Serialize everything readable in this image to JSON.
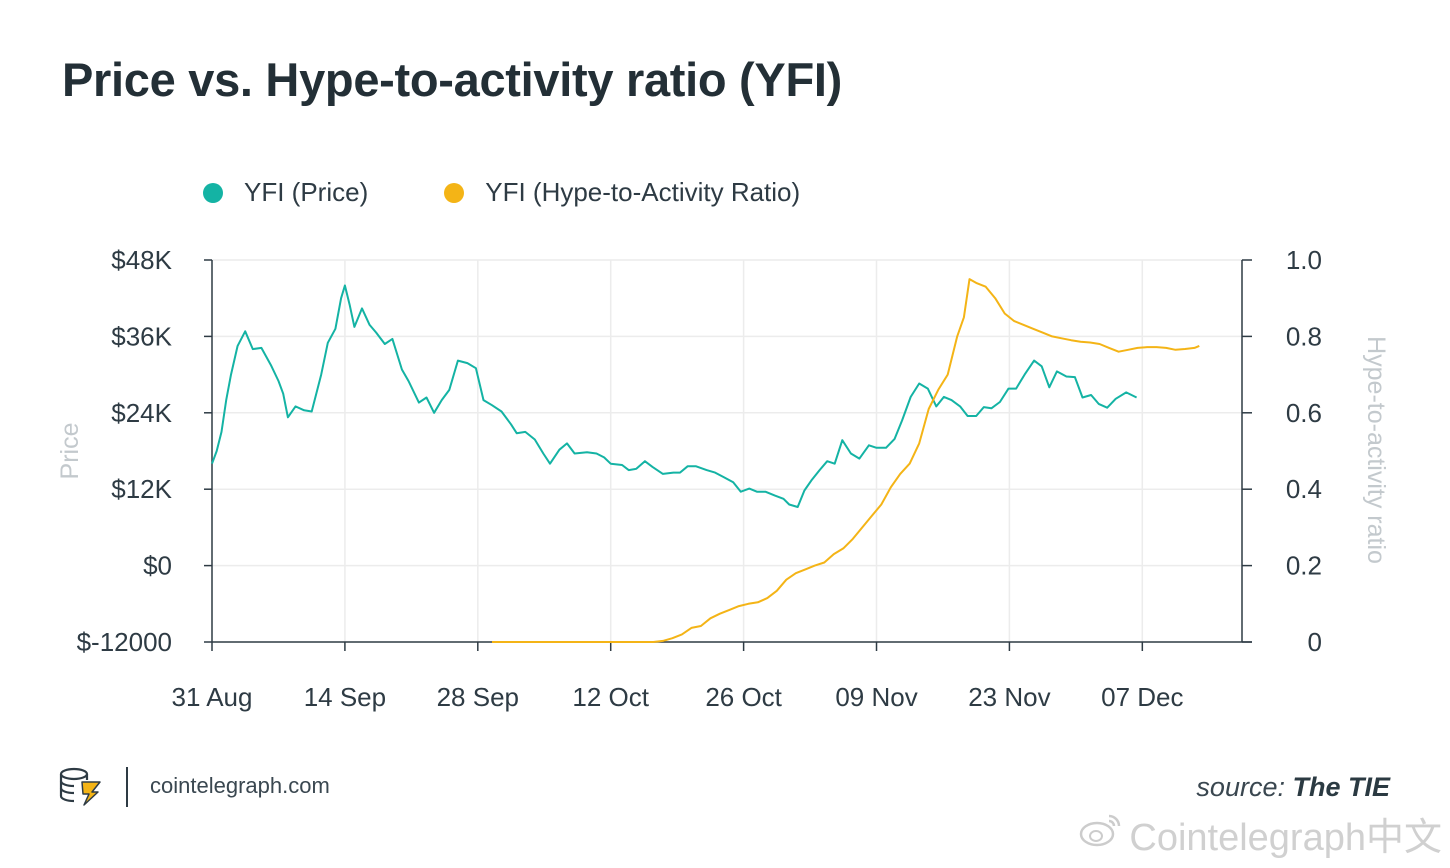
{
  "title": "Price vs. Hype-to-activity ratio (YFI)",
  "legend": [
    {
      "label": "YFI (Price)",
      "color": "#14b3a4"
    },
    {
      "label": "YFI (Hype-to-Activity Ratio)",
      "color": "#f4b416"
    }
  ],
  "footer": {
    "site": "cointelegraph.com",
    "source_label": "source:",
    "source_name": "The TIE",
    "watermark": "Cointelegraph中文"
  },
  "chart_data": {
    "type": "line",
    "title": "Price vs. Hype-to-activity ratio (YFI)",
    "xlabel": "",
    "ylabel": "Price",
    "y2label": "Hype-to-activity ratio",
    "x_range_days": [
      0,
      108.5
    ],
    "x_ticks": [
      {
        "label": "31 Aug",
        "day": 0
      },
      {
        "label": "14 Sep",
        "day": 14
      },
      {
        "label": "28 Sep",
        "day": 28
      },
      {
        "label": "12 Oct",
        "day": 42
      },
      {
        "label": "26 Oct",
        "day": 56
      },
      {
        "label": "09 Nov",
        "day": 70
      },
      {
        "label": "23 Nov",
        "day": 84
      },
      {
        "label": "07 Dec",
        "day": 98
      }
    ],
    "ylim": [
      -12000,
      48000
    ],
    "y_ticks": [
      {
        "label": "$48K",
        "value": 48000
      },
      {
        "label": "$36K",
        "value": 36000
      },
      {
        "label": "$24K",
        "value": 24000
      },
      {
        "label": "$12K",
        "value": 12000
      },
      {
        "label": "$0",
        "value": 0
      },
      {
        "label": "$-12000",
        "value": -12000
      }
    ],
    "y2lim": [
      0,
      1.0
    ],
    "y2_ticks": [
      {
        "label": "1.0",
        "value": 1.0
      },
      {
        "label": "0.8",
        "value": 0.8
      },
      {
        "label": "0.6",
        "value": 0.6
      },
      {
        "label": "0.4",
        "value": 0.4
      },
      {
        "label": "0.2",
        "value": 0.2
      },
      {
        "label": "0",
        "value": 0
      }
    ],
    "grid": true,
    "series": [
      {
        "name": "YFI (Price)",
        "axis": "left",
        "color": "#14b3a4",
        "points": [
          [
            0,
            16000
          ],
          [
            0.5,
            18000
          ],
          [
            1,
            21000
          ],
          [
            1.5,
            26000
          ],
          [
            2,
            30000
          ],
          [
            2.7,
            34500
          ],
          [
            3.5,
            36800
          ],
          [
            4.3,
            34000
          ],
          [
            5.2,
            34200
          ],
          [
            6.2,
            31500
          ],
          [
            7,
            29000
          ],
          [
            7.5,
            27000
          ],
          [
            8,
            23300
          ],
          [
            8.8,
            25000
          ],
          [
            9.7,
            24400
          ],
          [
            10.5,
            24200
          ],
          [
            11.5,
            30000
          ],
          [
            12.2,
            35000
          ],
          [
            13,
            37200
          ],
          [
            13.6,
            42000
          ],
          [
            14,
            44000
          ],
          [
            14.5,
            41000
          ],
          [
            15,
            37500
          ],
          [
            15.8,
            40400
          ],
          [
            16.6,
            37800
          ],
          [
            17.3,
            36600
          ],
          [
            18.2,
            34800
          ],
          [
            19,
            35600
          ],
          [
            20,
            30800
          ],
          [
            20.7,
            29000
          ],
          [
            21.8,
            25600
          ],
          [
            22.6,
            26400
          ],
          [
            23.4,
            24000
          ],
          [
            24.2,
            26000
          ],
          [
            25,
            27600
          ],
          [
            25.9,
            32200
          ],
          [
            26.9,
            31800
          ],
          [
            27.8,
            31000
          ],
          [
            28.6,
            26000
          ],
          [
            29.5,
            25200
          ],
          [
            30.5,
            24200
          ],
          [
            31.5,
            22200
          ],
          [
            32.1,
            20800
          ],
          [
            33,
            21000
          ],
          [
            34,
            19800
          ],
          [
            34.9,
            17600
          ],
          [
            35.6,
            16000
          ],
          [
            36.6,
            18200
          ],
          [
            37.4,
            19200
          ],
          [
            38.2,
            17600
          ],
          [
            39.5,
            17800
          ],
          [
            40.5,
            17600
          ],
          [
            41.3,
            17000
          ],
          [
            42,
            16000
          ],
          [
            43.2,
            15800
          ],
          [
            43.9,
            15000
          ],
          [
            44.7,
            15200
          ],
          [
            45.6,
            16400
          ],
          [
            46.4,
            15500
          ],
          [
            47.5,
            14400
          ],
          [
            48.6,
            14600
          ],
          [
            49.3,
            14600
          ],
          [
            50.1,
            15600
          ],
          [
            51,
            15600
          ],
          [
            52.1,
            15000
          ],
          [
            53,
            14600
          ],
          [
            53.9,
            13900
          ],
          [
            54.9,
            13100
          ],
          [
            55.7,
            11600
          ],
          [
            56.6,
            12100
          ],
          [
            57.4,
            11600
          ],
          [
            58.3,
            11600
          ],
          [
            59.3,
            11000
          ],
          [
            60.2,
            10500
          ],
          [
            60.8,
            9600
          ],
          [
            61.7,
            9200
          ],
          [
            62.4,
            11800
          ],
          [
            63.2,
            13500
          ],
          [
            64,
            15000
          ],
          [
            64.8,
            16400
          ],
          [
            65.6,
            16000
          ],
          [
            66.4,
            19700
          ],
          [
            67.3,
            17600
          ],
          [
            68.2,
            16800
          ],
          [
            69.2,
            18900
          ],
          [
            70,
            18500
          ],
          [
            71,
            18500
          ],
          [
            71.9,
            19900
          ],
          [
            72.7,
            22800
          ],
          [
            73.6,
            26500
          ],
          [
            74.5,
            28600
          ],
          [
            75.4,
            27800
          ],
          [
            76.3,
            25000
          ],
          [
            77.1,
            26500
          ],
          [
            77.9,
            26000
          ],
          [
            78.8,
            25000
          ],
          [
            79.6,
            23500
          ],
          [
            80.5,
            23500
          ],
          [
            81.3,
            24900
          ],
          [
            82.1,
            24700
          ],
          [
            83,
            25700
          ],
          [
            83.9,
            27800
          ],
          [
            84.7,
            27800
          ],
          [
            85.6,
            30000
          ],
          [
            86.6,
            32200
          ],
          [
            87.4,
            31300
          ],
          [
            88.2,
            28000
          ],
          [
            89,
            30500
          ],
          [
            90,
            29700
          ],
          [
            90.9,
            29600
          ],
          [
            91.7,
            26400
          ],
          [
            92.6,
            26800
          ],
          [
            93.4,
            25400
          ],
          [
            94.3,
            24800
          ],
          [
            95.2,
            26200
          ],
          [
            96.3,
            27200
          ],
          [
            97.4,
            26400
          ]
        ]
      },
      {
        "name": "YFI (Hype-to-Activity Ratio)",
        "axis": "right",
        "color": "#f4b416",
        "points": [
          [
            29.5,
            0
          ],
          [
            33,
            0
          ],
          [
            36,
            0
          ],
          [
            40,
            0
          ],
          [
            44,
            0
          ],
          [
            46.5,
            0
          ],
          [
            47.5,
            0.003
          ],
          [
            48.5,
            0.01
          ],
          [
            49.5,
            0.02
          ],
          [
            50.5,
            0.037
          ],
          [
            51.5,
            0.042
          ],
          [
            52.5,
            0.062
          ],
          [
            53.5,
            0.074
          ],
          [
            54.5,
            0.084
          ],
          [
            55.5,
            0.094
          ],
          [
            56.5,
            0.1
          ],
          [
            57.5,
            0.104
          ],
          [
            58.5,
            0.115
          ],
          [
            59.5,
            0.134
          ],
          [
            60.5,
            0.163
          ],
          [
            61.5,
            0.18
          ],
          [
            62.5,
            0.19
          ],
          [
            63.5,
            0.2
          ],
          [
            64.5,
            0.208
          ],
          [
            65.5,
            0.23
          ],
          [
            66.5,
            0.245
          ],
          [
            67.5,
            0.27
          ],
          [
            68.5,
            0.3
          ],
          [
            69.5,
            0.33
          ],
          [
            70.5,
            0.36
          ],
          [
            71.5,
            0.405
          ],
          [
            72.5,
            0.44
          ],
          [
            73.5,
            0.467
          ],
          [
            74.5,
            0.52
          ],
          [
            75.5,
            0.61
          ],
          [
            76.5,
            0.66
          ],
          [
            77.5,
            0.7
          ],
          [
            78.5,
            0.8
          ],
          [
            79.2,
            0.85
          ],
          [
            79.8,
            0.95
          ],
          [
            80.5,
            0.94
          ],
          [
            81.5,
            0.93
          ],
          [
            82.5,
            0.9
          ],
          [
            83.5,
            0.86
          ],
          [
            84.5,
            0.84
          ],
          [
            85.5,
            0.83
          ],
          [
            86.5,
            0.82
          ],
          [
            87.5,
            0.81
          ],
          [
            88.5,
            0.8
          ],
          [
            89.5,
            0.795
          ],
          [
            90.5,
            0.79
          ],
          [
            91.5,
            0.786
          ],
          [
            92.5,
            0.784
          ],
          [
            93.5,
            0.78
          ],
          [
            94.5,
            0.77
          ],
          [
            95.5,
            0.76
          ],
          [
            96.5,
            0.765
          ],
          [
            97.5,
            0.77
          ],
          [
            98.5,
            0.772
          ],
          [
            99.5,
            0.772
          ],
          [
            100.5,
            0.77
          ],
          [
            101.5,
            0.765
          ],
          [
            102.5,
            0.767
          ],
          [
            103.5,
            0.77
          ],
          [
            104,
            0.775
          ]
        ]
      }
    ]
  }
}
